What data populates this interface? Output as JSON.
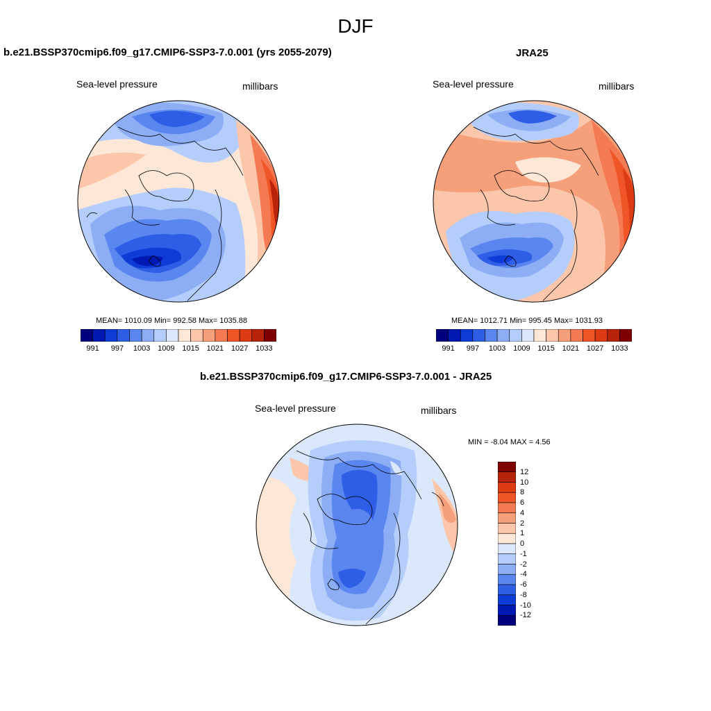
{
  "figure_title": "DJF",
  "panels": {
    "model": {
      "title": "b.e21.BSSP370cmip6.f09_g17.CMIP6-SSP3-7.0.001 (yrs 2055-2079)",
      "variable": "Sea-level pressure",
      "units": "millibars",
      "stats": "MEAN= 1010.09  Min= 992.58  Max= 1035.88",
      "colorbar_ticks": [
        "991",
        "997",
        "1003",
        "1009",
        "1015",
        "1021",
        "1027",
        "1033"
      ]
    },
    "obs": {
      "title": "JRA25",
      "variable": "Sea-level pressure",
      "units": "millibars",
      "stats": "MEAN= 1012.71  Min= 995.45  Max= 1031.93",
      "colorbar_ticks": [
        "991",
        "997",
        "1003",
        "1009",
        "1015",
        "1021",
        "1027",
        "1033"
      ]
    },
    "diff": {
      "title": "b.e21.BSSP370cmip6.f09_g17.CMIP6-SSP3-7.0.001 - JRA25",
      "variable": "Sea-level pressure",
      "units": "millibars",
      "stats": "MIN =  -8.04 MAX =   4.56",
      "colorbar_labels": [
        "12",
        "10",
        "8",
        "6",
        "4",
        "2",
        "1",
        "0",
        "-1",
        "-2",
        "-4",
        "-6",
        "-8",
        "-10",
        "-12"
      ]
    }
  },
  "colors": {
    "absolute_scale": [
      "#00007f",
      "#0019b3",
      "#0f3cd7",
      "#2e5ee6",
      "#5a87ef",
      "#8dadf4",
      "#b5cdfa",
      "#dbe8fc",
      "#fde7d7",
      "#fbc6aa",
      "#f6a07b",
      "#f37a52",
      "#ef5527",
      "#dc3b13",
      "#b8240a",
      "#7f0000"
    ],
    "diff_scale": [
      "#7f0000",
      "#b8240a",
      "#dc3b13",
      "#ef5527",
      "#f37a52",
      "#f6a07b",
      "#fbc6aa",
      "#fde7d7",
      "#dbe8fc",
      "#b5cdfa",
      "#8dadf4",
      "#5a87ef",
      "#2e5ee6",
      "#0f3cd7",
      "#0019b3",
      "#00007f"
    ]
  }
}
